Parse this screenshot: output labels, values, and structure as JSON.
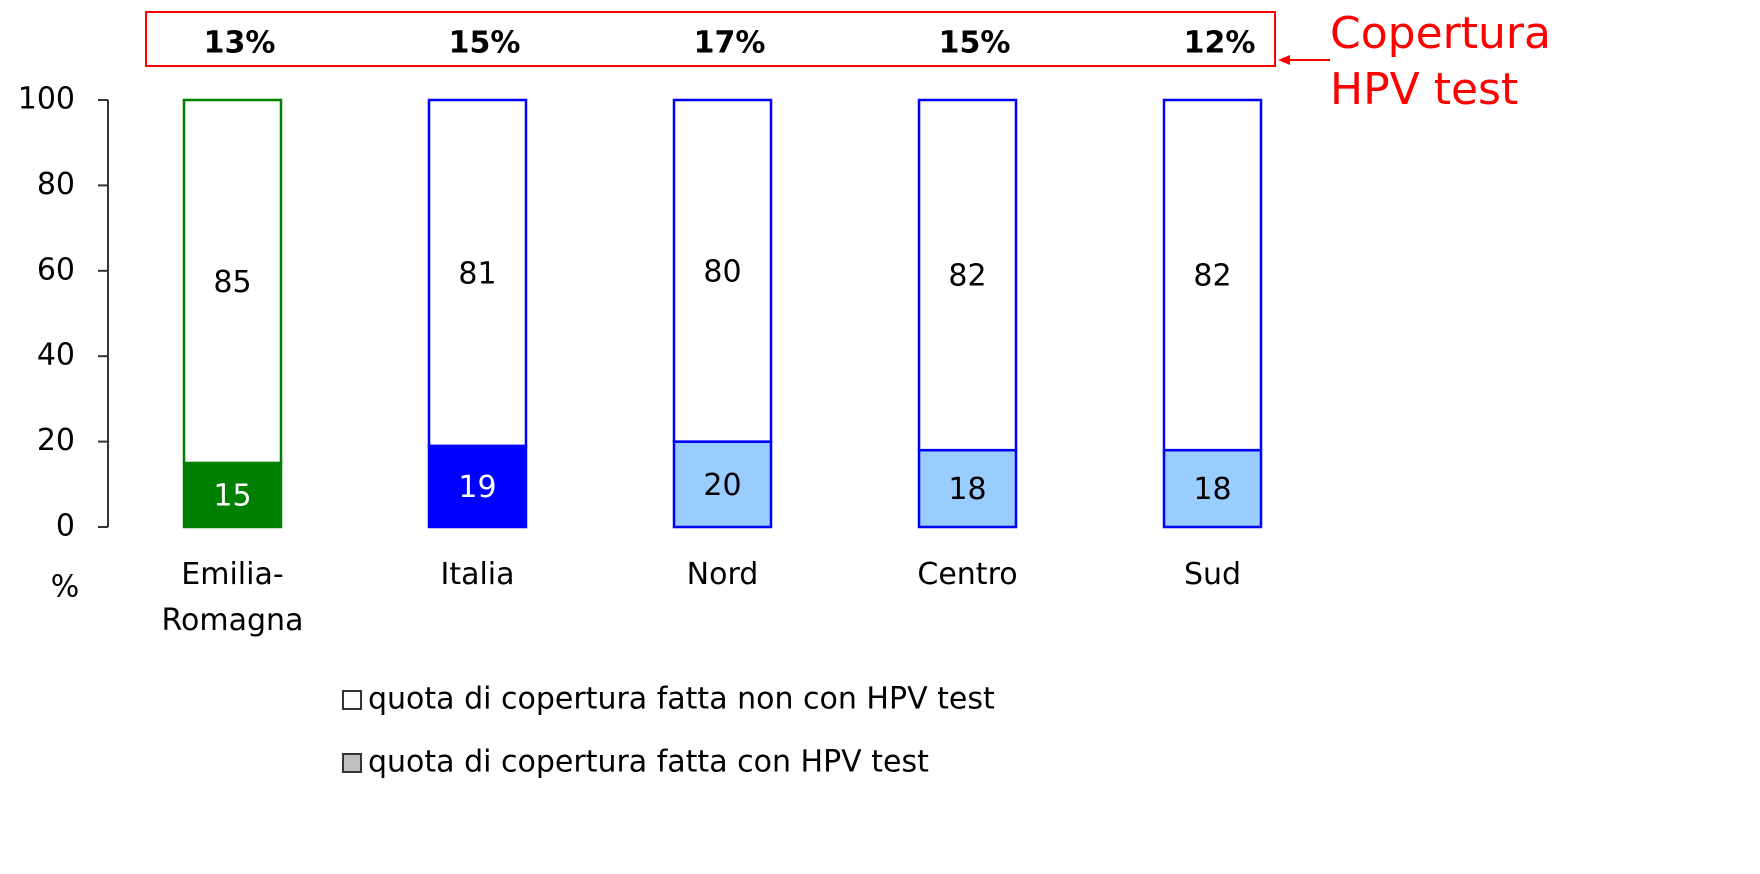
{
  "chart_data": {
    "type": "stacked_bar",
    "y_label": "%",
    "categories": [
      "Emilia-Romagna",
      "Italia",
      "Nord",
      "Centro",
      "Sud"
    ],
    "series": [
      {
        "name": "quota di copertura fatta con HPV test",
        "color": "#c0c0c0",
        "colors": [
          "#008000",
          "#0000ff",
          "#99ccff",
          "#99ccff",
          "#99ccff"
        ],
        "values": [
          15,
          19,
          20,
          18,
          18
        ]
      },
      {
        "name": "quota di copertura fatta non con HPV test",
        "color": "#ffffff",
        "colors": [
          "#ffffff",
          "#ffffff",
          "#ffffff",
          "#ffffff",
          "#ffffff"
        ],
        "values": [
          85,
          81,
          80,
          82,
          82
        ]
      }
    ],
    "edge_colors": [
      "#008000",
      "#0000ff",
      "#0000ff",
      "#0000ff",
      "#0000ff"
    ],
    "ylim": [
      0,
      100
    ],
    "yticks": [
      0,
      20,
      40,
      60,
      80,
      100
    ],
    "coverage": {
      "title_lines": [
        "Copertura",
        "HPV test"
      ],
      "color": "#ff0000",
      "values": [
        13,
        15,
        17,
        15,
        12
      ],
      "value_labels": [
        "13%",
        "15%",
        "17%",
        "15%",
        "12%"
      ]
    }
  }
}
